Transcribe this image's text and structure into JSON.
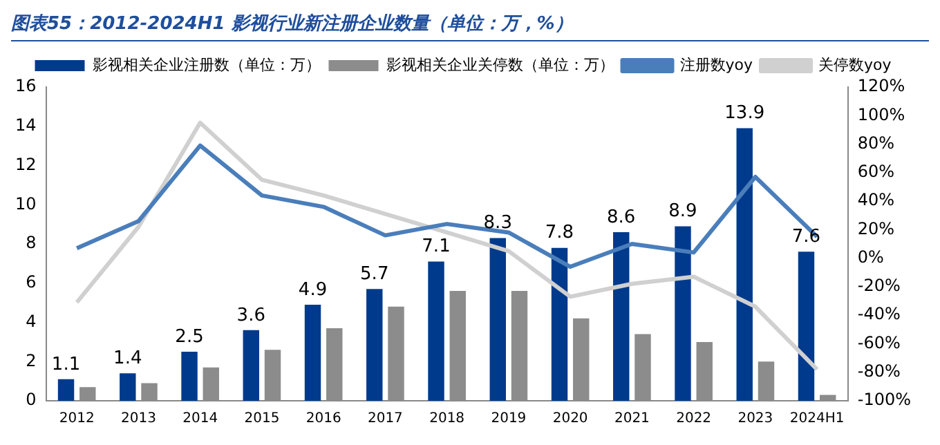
{
  "chart_data": {
    "type": "bar",
    "title": "图表55：2012-2024H1 影视行业新注册企业数量（单位：万，%）",
    "categories": [
      "2012",
      "2013",
      "2014",
      "2015",
      "2016",
      "2017",
      "2018",
      "2019",
      "2020",
      "2021",
      "2022",
      "2023",
      "2024H1"
    ],
    "series": [
      {
        "name": "影视相关企业注册数（单位：万）",
        "color": "#003a8c",
        "values": [
          1.1,
          1.4,
          2.5,
          3.6,
          4.9,
          5.7,
          7.1,
          8.3,
          7.8,
          8.6,
          8.9,
          13.9,
          7.6
        ],
        "value_labels": [
          "1.1",
          "1.4",
          "2.5",
          "3.6",
          "4.9",
          "5.7",
          "7.1",
          "8.3",
          "7.8",
          "8.6",
          "8.9",
          "13.9",
          "7.6"
        ]
      },
      {
        "name": "影视相关企业关停数（单位：万）",
        "color": "#8c8c8c",
        "values": [
          0.7,
          0.9,
          1.7,
          2.6,
          3.7,
          4.8,
          5.6,
          5.6,
          4.2,
          3.4,
          3.0,
          2.0,
          0.3
        ]
      },
      {
        "name": "注册数yoy",
        "type": "line",
        "axis": "y2",
        "color": "#4a7ebb",
        "values": [
          7,
          26,
          79,
          44,
          36,
          16,
          24,
          18,
          -6,
          10,
          4,
          57,
          15
        ]
      },
      {
        "name": "关停数yoy",
        "type": "line",
        "axis": "y2",
        "color": "#d0d0d0",
        "values": [
          -31,
          22,
          95,
          55,
          44,
          31,
          18,
          5,
          -27,
          -18,
          -13,
          -34,
          -78
        ]
      }
    ],
    "ylim": [
      0,
      16
    ],
    "yticks": [
      0,
      2,
      4,
      6,
      8,
      10,
      12,
      14,
      16
    ],
    "y2lim": [
      -100,
      120
    ],
    "y2ticks": [
      {
        "value": -100,
        "label": "-100%"
      },
      {
        "value": -80,
        "label": "-80%"
      },
      {
        "value": -60,
        "label": "-60%"
      },
      {
        "value": -40,
        "label": "-40%"
      },
      {
        "value": -20,
        "label": "-20%"
      },
      {
        "value": 0,
        "label": "0%"
      },
      {
        "value": 20,
        "label": "20%"
      },
      {
        "value": 40,
        "label": "40%"
      },
      {
        "value": 60,
        "label": "60%"
      },
      {
        "value": 80,
        "label": "80%"
      },
      {
        "value": 100,
        "label": "100%"
      },
      {
        "value": 120,
        "label": "120%"
      }
    ],
    "grid": false,
    "legend": "top",
    "marker": "none"
  }
}
